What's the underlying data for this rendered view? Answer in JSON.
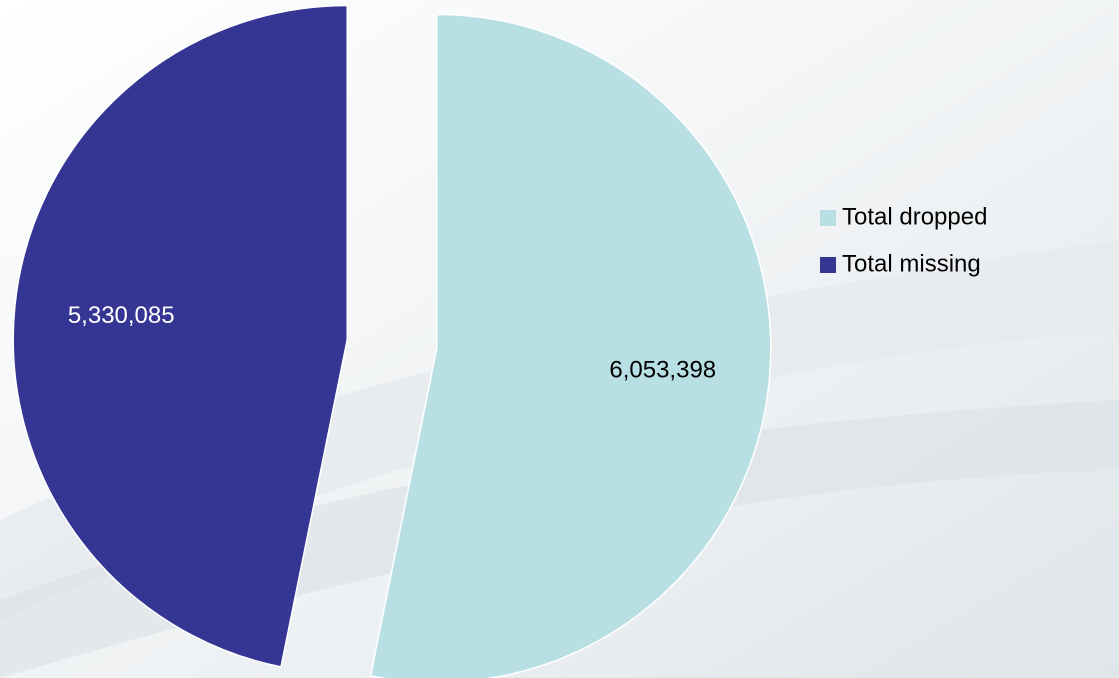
{
  "chart_data": {
    "type": "pie",
    "categories": [
      "Total dropped",
      "Total missing"
    ],
    "values": [
      6053398,
      5330085
    ],
    "value_labels": [
      "6,053,398",
      "5,330,085"
    ],
    "colors": [
      "#b8dfe3",
      "#353594"
    ],
    "legend": "right"
  }
}
